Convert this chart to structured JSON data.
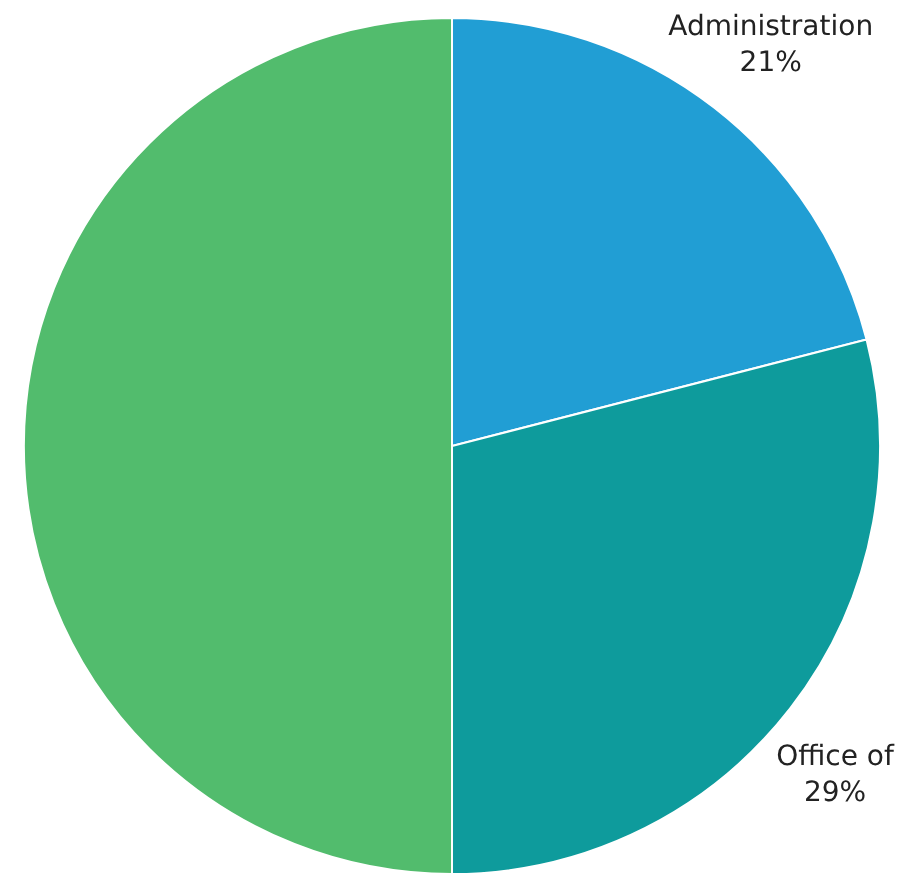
{
  "chart_data": {
    "type": "pie",
    "categories": [
      "Administration",
      "Office of",
      null
    ],
    "values": [
      21,
      29,
      50
    ],
    "colors": [
      "#219ed4",
      "#0e9b9c",
      "#52bc6d"
    ],
    "value_labels": [
      "21%",
      "29%",
      null
    ]
  }
}
